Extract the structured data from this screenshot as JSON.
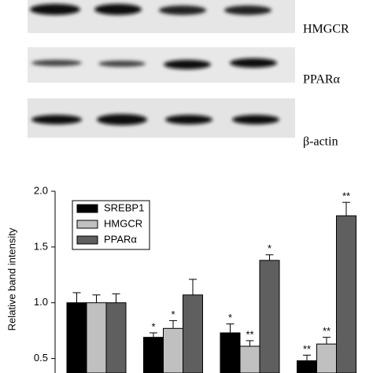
{
  "blot_labels": [
    "HMGCR",
    "PPARα",
    "β-actin"
  ],
  "chart_data": {
    "type": "bar",
    "y_label": "Relative band intensity",
    "categories": [
      null,
      null,
      null,
      null
    ],
    "series": [
      {
        "name": "SREBP1",
        "color": "#000000",
        "values": [
          1.0,
          0.69,
          0.73,
          0.48
        ],
        "errors": [
          0.09,
          0.04,
          0.08,
          0.05
        ],
        "annotations": [
          null,
          "*",
          "*",
          "**"
        ]
      },
      {
        "name": "HMGCR",
        "color": "#c0c0c0",
        "values": [
          1.0,
          0.77,
          0.61,
          0.63
        ],
        "errors": [
          0.07,
          0.07,
          0.05,
          0.06
        ],
        "annotations": [
          null,
          "*",
          "**",
          "**"
        ]
      },
      {
        "name": "PPARα",
        "color": "#5f5f5f",
        "values": [
          1.0,
          1.07,
          1.38,
          1.78
        ],
        "errors": [
          0.08,
          0.14,
          0.05,
          0.12
        ],
        "annotations": [
          null,
          null,
          "*",
          "**"
        ]
      }
    ],
    "ylim": [
      0.37,
      2.0
    ],
    "yticks": [
      0.5,
      {
        "value": 1.0,
        "label": "1.0"
      },
      1.5,
      {
        "value": 2.0,
        "label": "2.0"
      }
    ],
    "legend": "upper left"
  }
}
